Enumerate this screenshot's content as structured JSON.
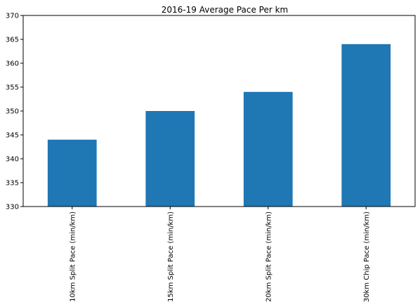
{
  "chart_data": {
    "type": "bar",
    "title": "2016-19 Average Pace Per km",
    "xlabel": "",
    "ylabel": "",
    "categories": [
      "10km Split Pace (min/km)",
      "15km Split Pace (min/km)",
      "20km Split Pace (min/km)",
      "30km Chip Pace (min/km)"
    ],
    "values": [
      344,
      350,
      354,
      364
    ],
    "ylim": [
      330,
      370
    ],
    "yticks": [
      330,
      335,
      340,
      345,
      350,
      355,
      360,
      365,
      370
    ],
    "grid": false,
    "legend": "none",
    "bar_color": "#1f77b4"
  }
}
